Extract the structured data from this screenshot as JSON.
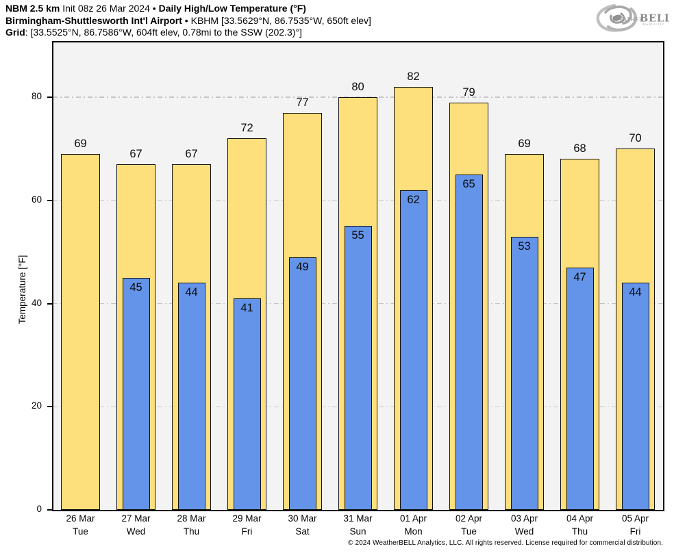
{
  "header": {
    "line1": {
      "model": "NBM 2.5 km",
      "init": " Init 08z 26 Mar 2024 • ",
      "product": "Daily High/Low Temperature (°F)"
    },
    "line2": {
      "station": "Birmingham-Shuttlesworth Int'l Airport",
      "info": " • KBHM [33.5629°N, 86.7535°W, 650ft elev]"
    },
    "line3": {
      "label": "Grid",
      "info": ": [33.5525°N, 86.7586°W, 604ft elev, 0.78mi to the SSW (202.3)°]"
    }
  },
  "logo": {
    "weather": "Weather",
    "bell": "BELL",
    "sub": "Analytics LLC"
  },
  "chart_data": {
    "type": "bar",
    "title": "Daily High/Low Temperature (°F)",
    "xlabel": "",
    "ylabel": "Temperature [°F]",
    "ylim": [
      0,
      90.75
    ],
    "yticks": [
      0,
      20,
      40,
      60,
      80
    ],
    "grid": "horizontal dash-dot at 20/40/60/80",
    "legend": "none",
    "plot_bg": "#f3f3f3",
    "grid_color": "#c5c5c5",
    "categories": [
      {
        "date": "26 Mar",
        "day": "Tue"
      },
      {
        "date": "27 Mar",
        "day": "Wed"
      },
      {
        "date": "28 Mar",
        "day": "Thu"
      },
      {
        "date": "29 Mar",
        "day": "Fri"
      },
      {
        "date": "30 Mar",
        "day": "Sat"
      },
      {
        "date": "31 Mar",
        "day": "Sun"
      },
      {
        "date": "01 Apr",
        "day": "Mon"
      },
      {
        "date": "02 Apr",
        "day": "Tue"
      },
      {
        "date": "03 Apr",
        "day": "Wed"
      },
      {
        "date": "04 Apr",
        "day": "Thu"
      },
      {
        "date": "05 Apr",
        "day": "Fri"
      }
    ],
    "series": [
      {
        "name": "Daily High",
        "color": "#FDDF7C",
        "values": [
          69,
          67,
          67,
          72,
          77,
          80,
          82,
          79,
          69,
          68,
          70
        ]
      },
      {
        "name": "Daily Low",
        "color": "#6494E9",
        "values": [
          null,
          45,
          44,
          41,
          49,
          55,
          62,
          65,
          53,
          47,
          44
        ]
      }
    ]
  },
  "footer": {
    "copyright": "© 2024 WeatherBELL Analytics, LLC. All rights reserved. License required for commercial distribution."
  }
}
